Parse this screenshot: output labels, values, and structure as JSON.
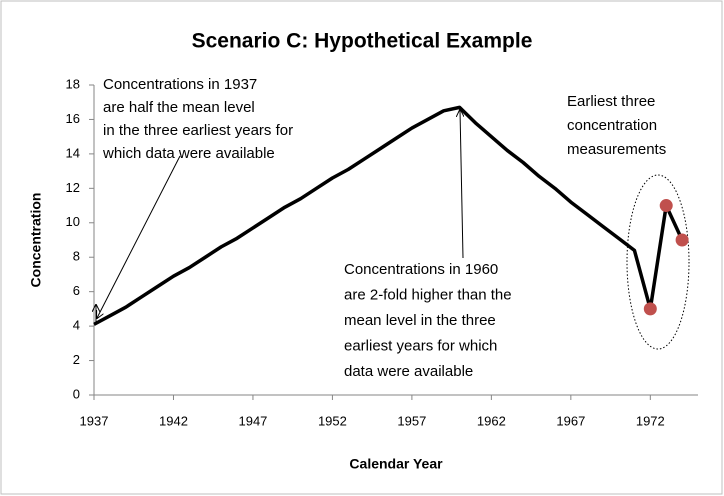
{
  "chart_data": {
    "type": "line",
    "title": "Scenario C: Hypothetical Example",
    "x_label": "Calendar Year",
    "y_label": "Concentration",
    "x": [
      1937,
      1938,
      1939,
      1940,
      1941,
      1942,
      1943,
      1944,
      1945,
      1946,
      1947,
      1948,
      1949,
      1950,
      1951,
      1952,
      1953,
      1954,
      1955,
      1956,
      1957,
      1958,
      1959,
      1960,
      1961,
      1962,
      1963,
      1964,
      1965,
      1966,
      1967,
      1968,
      1969,
      1970,
      1971,
      1972,
      1973,
      1974
    ],
    "series": [
      {
        "color": "#000000",
        "values": [
          4.1,
          4.6,
          5.1,
          5.7,
          6.3,
          6.9,
          7.4,
          8.0,
          8.6,
          9.1,
          9.7,
          10.3,
          10.9,
          11.4,
          12.0,
          12.6,
          13.1,
          13.7,
          14.3,
          14.9,
          15.5,
          16.0,
          16.5,
          16.7,
          15.8,
          15.0,
          14.2,
          13.5,
          12.7,
          12.0,
          11.2,
          10.5,
          9.8,
          9.1,
          8.4,
          5.0,
          11.0,
          9.0
        ]
      },
      {
        "color": "#c0504d",
        "markers_only": true,
        "values": [
          null,
          null,
          null,
          null,
          null,
          null,
          null,
          null,
          null,
          null,
          null,
          null,
          null,
          null,
          null,
          null,
          null,
          null,
          null,
          null,
          null,
          null,
          null,
          null,
          null,
          null,
          null,
          null,
          null,
          null,
          null,
          null,
          null,
          null,
          null,
          5.0,
          11.0,
          9.0
        ]
      }
    ],
    "xlim": [
      1937,
      1975
    ],
    "xticks": [
      1937,
      1942,
      1947,
      1952,
      1957,
      1962,
      1967,
      1972
    ],
    "ylim": [
      0,
      18
    ],
    "yticks": [
      0,
      2,
      4,
      6,
      8,
      10,
      12,
      14,
      16,
      18
    ],
    "annotations": [
      [
        "Concentrations in 1937",
        "are half the mean level",
        "in the three earliest years for",
        "which data were available"
      ],
      [
        "Concentrations in 1960",
        "are 2-fold higher than  the",
        "mean level in the three",
        "earliest years for which",
        "data were available"
      ],
      [
        "Earliest three",
        "concentration",
        "measurements"
      ]
    ]
  }
}
